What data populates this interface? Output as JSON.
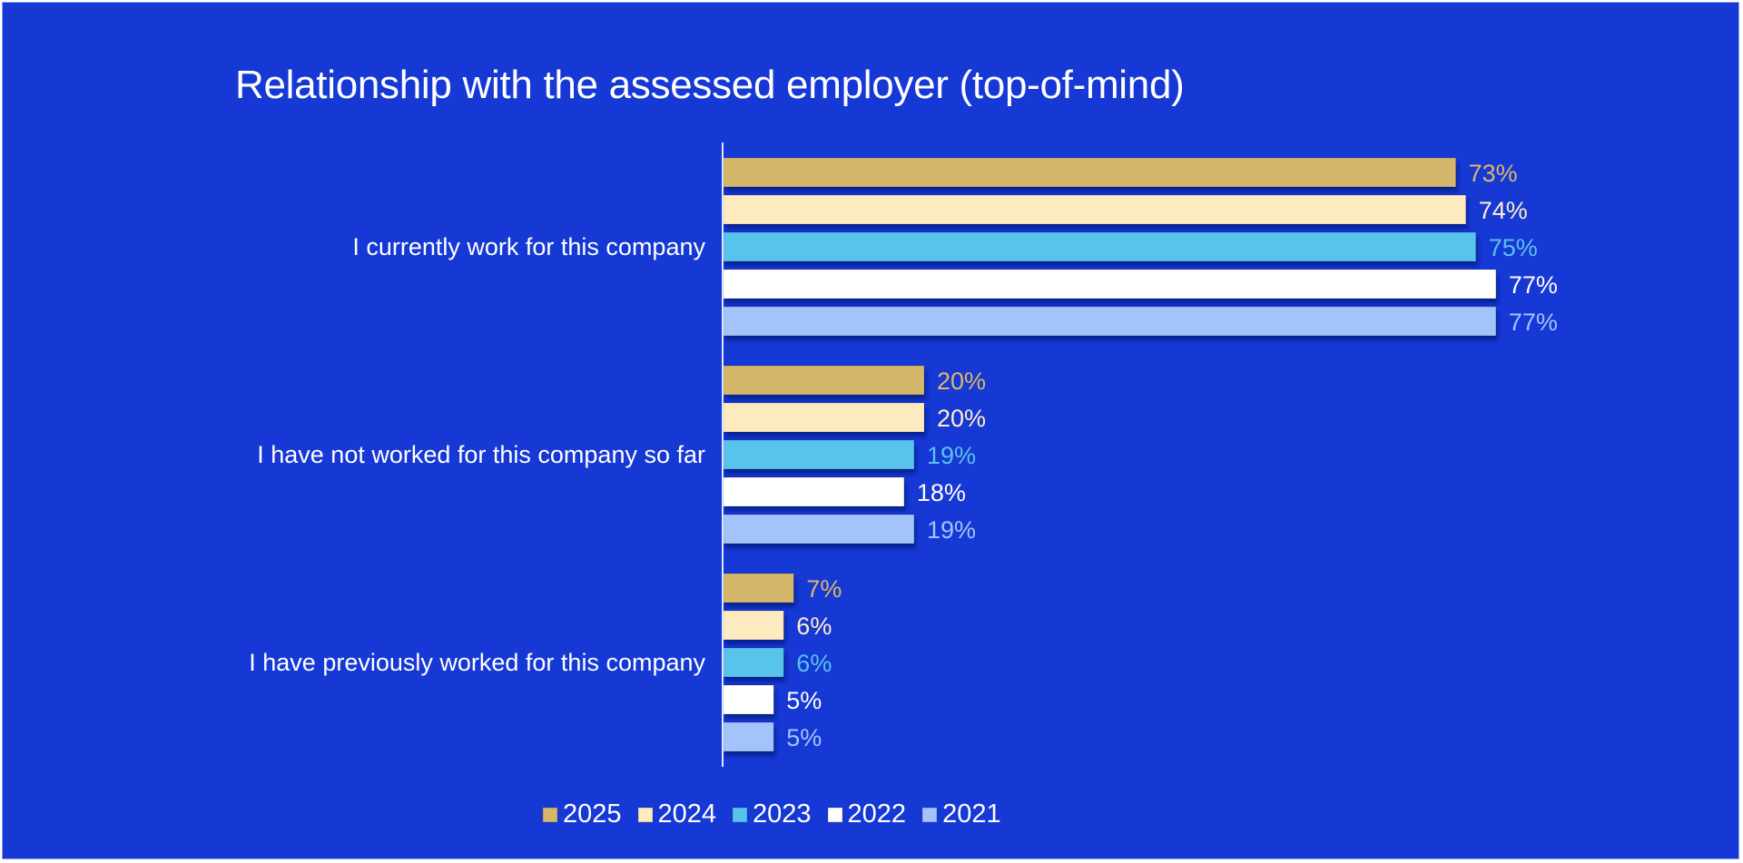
{
  "chart_data": {
    "type": "bar",
    "orientation": "horizontal",
    "title": "Relationship with the assessed employer (top-of-mind)",
    "xlabel": "",
    "ylabel": "",
    "xlim": [
      0,
      80
    ],
    "grid": false,
    "legend_position": "bottom",
    "value_suffix": "%",
    "categories": [
      "I currently work for this company",
      "I have not worked for this company so far",
      "I have previously worked for this company"
    ],
    "series": [
      {
        "name": "2025",
        "color": "#d4b76a",
        "label_color": "#d9b868",
        "values": [
          73,
          20,
          7
        ]
      },
      {
        "name": "2024",
        "color": "#ffebc0",
        "label_color": "#fff0cc",
        "values": [
          74,
          20,
          6
        ]
      },
      {
        "name": "2023",
        "color": "#58c4ec",
        "label_color": "#58c4ec",
        "values": [
          75,
          19,
          6
        ]
      },
      {
        "name": "2022",
        "color": "#ffffff",
        "label_color": "#ffffff",
        "values": [
          77,
          18,
          5
        ]
      },
      {
        "name": "2021",
        "color": "#a2c4fa",
        "label_color": "#a2c4fa",
        "values": [
          77,
          19,
          5
        ]
      }
    ],
    "data_labels": [
      [
        "73%",
        "74%",
        "75%",
        "77%",
        "77%"
      ],
      [
        "20%",
        "20%",
        "19%",
        "18%",
        "19%"
      ],
      [
        "7%",
        "6%",
        "6%",
        "5%",
        "5%"
      ]
    ]
  },
  "colors": {
    "background": "#1638d5",
    "text": "#ffffff",
    "axis": "#dfe6ff"
  }
}
